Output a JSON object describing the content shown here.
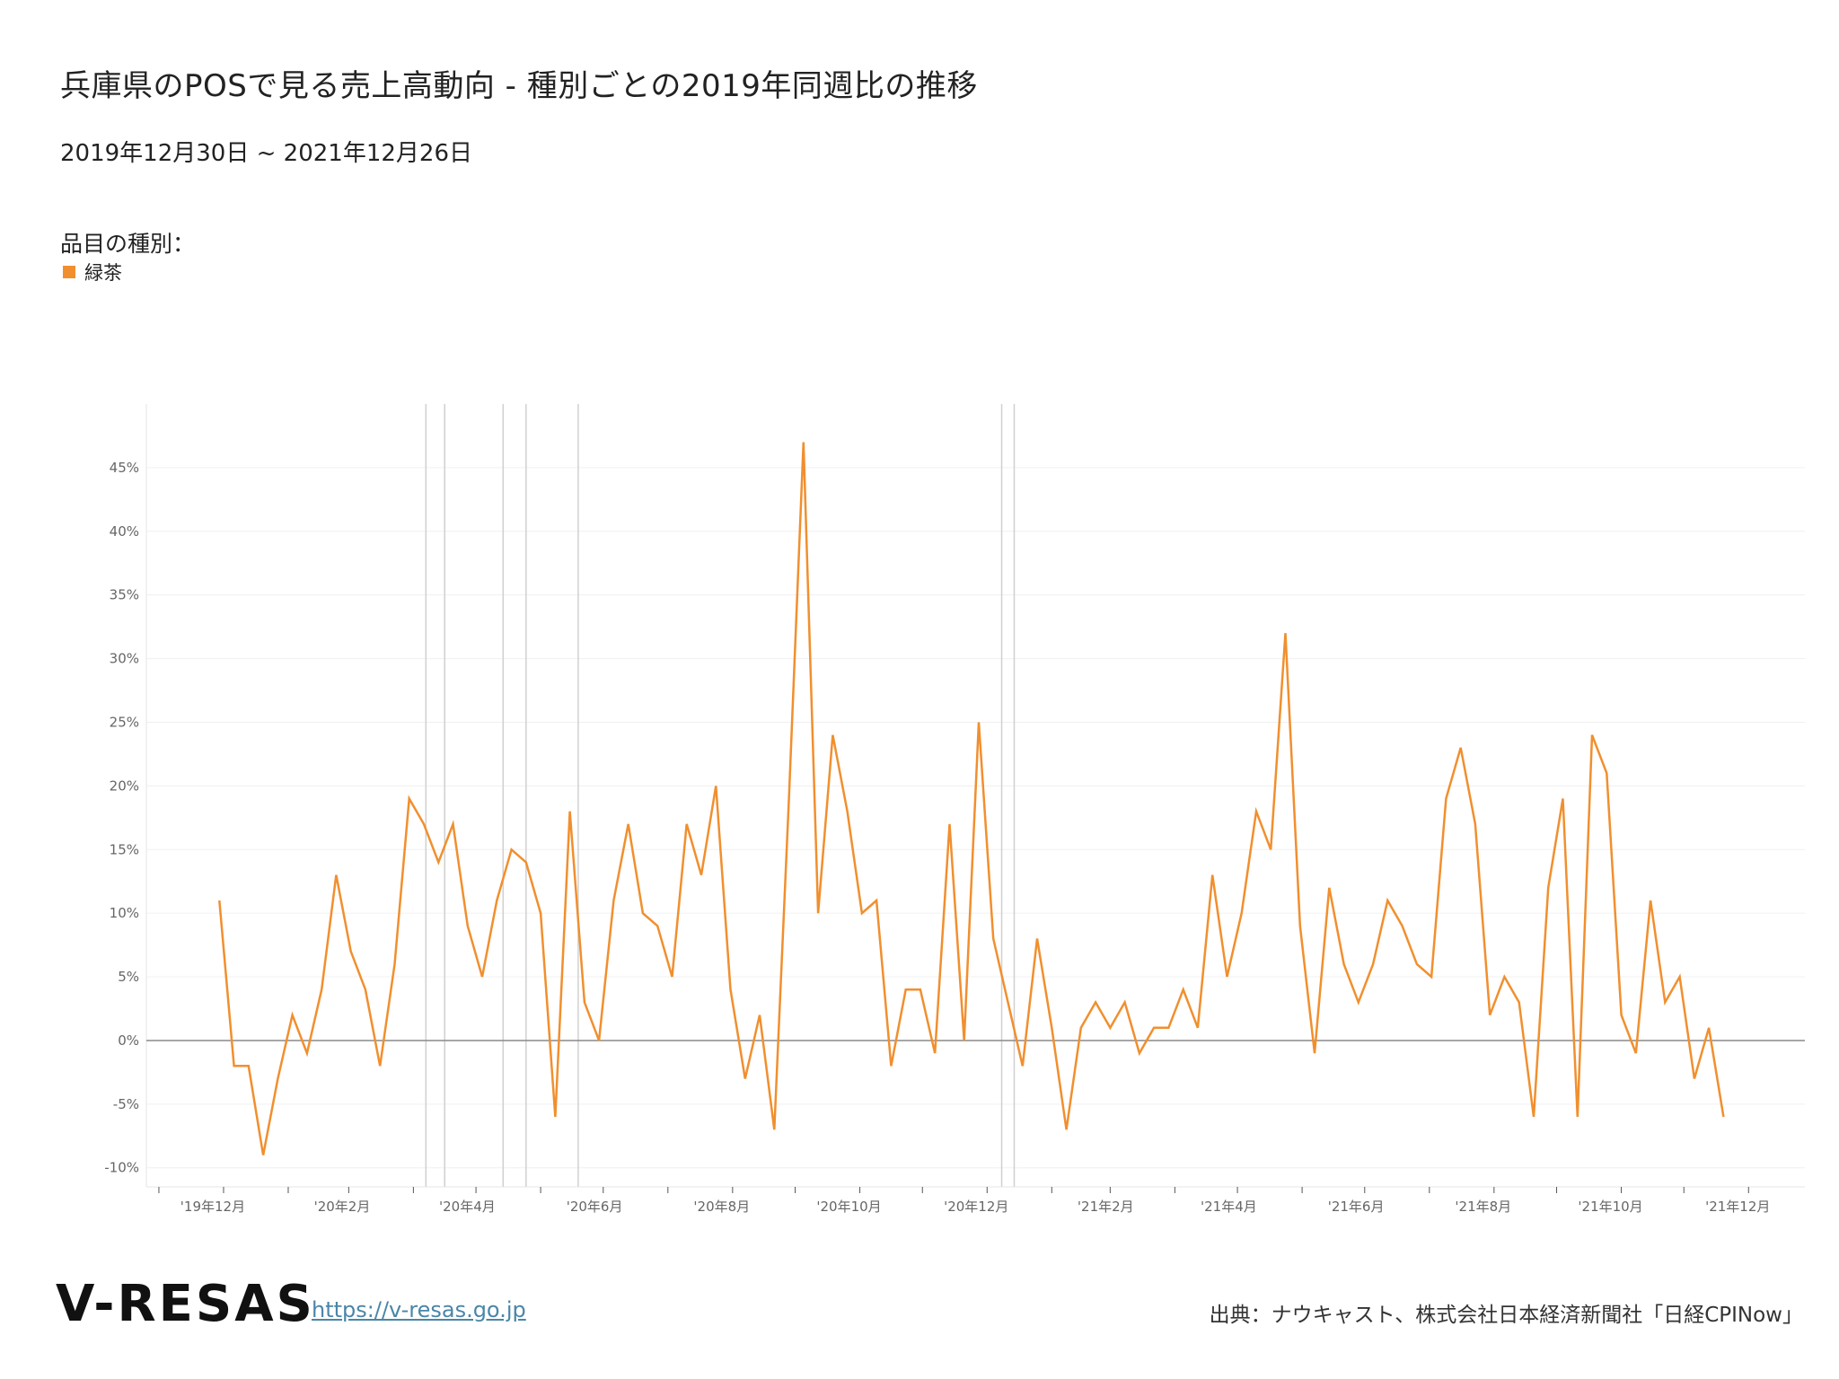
{
  "header": {
    "title": "兵庫県のPOSで見る売上高動向 - 種別ごとの2019年同週比の推移",
    "subtitle": "2019年12月30日 ~ 2021年12月26日"
  },
  "legend": {
    "title": "品目の種別：",
    "items": [
      {
        "label": "緑茶",
        "color": "#f18f2e"
      }
    ]
  },
  "footer": {
    "logo": "V-RESAS",
    "link": "https://v-resas.go.jp",
    "source": "出典：ナウキャスト、株式会社日本経済新聞社「日経CPINow」"
  },
  "chart_data": {
    "type": "line",
    "x_start": "2019-12-30",
    "x_step_days": 7,
    "series": [
      {
        "name": "緑茶",
        "color": "#f18f2e",
        "values": [
          11,
          -2,
          -2,
          -9,
          -3,
          2,
          -1,
          4,
          13,
          7,
          4,
          -2,
          6,
          19,
          17,
          14,
          17,
          9,
          5,
          11,
          15,
          14,
          10,
          -6,
          18,
          3,
          0,
          11,
          17,
          10,
          9,
          5,
          17,
          13,
          20,
          4,
          -3,
          2,
          -7,
          19,
          47,
          10,
          24,
          18,
          10,
          11,
          -2,
          4,
          4,
          -1,
          17,
          0,
          25,
          8,
          3,
          -2,
          8,
          1,
          -7,
          1,
          3,
          1,
          3,
          -1,
          1,
          1,
          4,
          1,
          13,
          5,
          10,
          18,
          15,
          32,
          9,
          -1,
          12,
          6,
          3,
          6,
          11,
          9,
          6,
          5,
          19,
          23,
          17,
          2,
          5,
          3,
          -6,
          12,
          19,
          -6,
          24,
          21,
          2,
          -1,
          11,
          3,
          5,
          -3,
          1,
          -6
        ]
      }
    ],
    "ylim": [
      -11.5,
      50
    ],
    "y_ticks": [
      -10,
      -5,
      0,
      5,
      10,
      15,
      20,
      25,
      30,
      35,
      40,
      45
    ],
    "y_tick_labels": [
      "-10%",
      "-5%",
      "0%",
      "5%",
      "10%",
      "15%",
      "20%",
      "25%",
      "30%",
      "35%",
      "40%",
      "45%"
    ],
    "x_tick_labels": [
      "'19年12月",
      "'20年2月",
      "'20年4月",
      "'20年6月",
      "'20年8月",
      "'20年10月",
      "'20年12月",
      "'21年2月",
      "'21年4月",
      "'21年6月",
      "'21年8月",
      "'21年10月",
      "'21年12月"
    ],
    "month_ticks": [
      "2019-12-01",
      "2020-01-01",
      "2020-02-01",
      "2020-03-01",
      "2020-04-01",
      "2020-05-01",
      "2020-06-01",
      "2020-07-01",
      "2020-08-01",
      "2020-09-01",
      "2020-10-01",
      "2020-11-01",
      "2020-12-01",
      "2021-01-01",
      "2021-02-01",
      "2021-03-01",
      "2021-04-01",
      "2021-05-01",
      "2021-06-01",
      "2021-07-01",
      "2021-08-01",
      "2021-09-01",
      "2021-10-01",
      "2021-11-01",
      "2021-12-01",
      "2022-01-01"
    ],
    "event_lines": [
      "2020-04-07",
      "2020-04-16",
      "2020-05-14",
      "2020-05-25",
      "2020-06-19",
      "2021-01-08",
      "2021-01-14"
    ],
    "zero_line": true,
    "grid": "horizontal",
    "legend_position": "top-left"
  }
}
